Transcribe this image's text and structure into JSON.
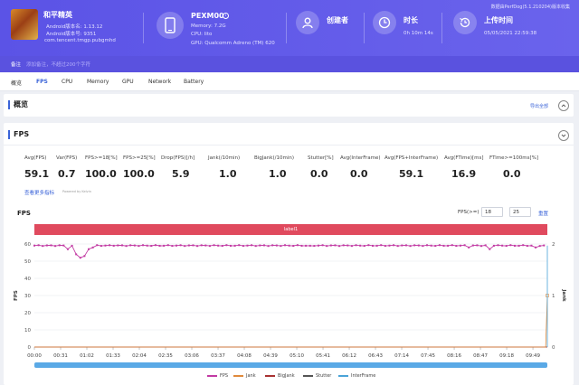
{
  "header": {
    "app": {
      "name": "和平精英",
      "android_version": "Android版本名: 1.13.12",
      "android_code": "Android版本号: 9351",
      "package": "com.tencent.tmgp.pubgmhd"
    },
    "device": {
      "name": "PEXM00",
      "memory": "Memory: 7.2G",
      "cpu": "CPU: lito",
      "gpu": "GPU: Qualcomm Adreno (TM) 620"
    },
    "creator": {
      "label": "创建者"
    },
    "duration": {
      "label": "时长",
      "value": "0h 10m 14s"
    },
    "upload": {
      "label": "上传时间",
      "value": "05/05/2021 22:59:38"
    },
    "version_note": "数据由PerfDog(5.1.210204)版本收集",
    "note": {
      "label": "备注",
      "placeholder": "添加备注，不超过200个字符"
    }
  },
  "tabs": [
    {
      "label": "概览",
      "active": false
    },
    {
      "label": "FPS",
      "active": true
    },
    {
      "label": "CPU",
      "active": false
    },
    {
      "label": "Memory",
      "active": false
    },
    {
      "label": "GPU",
      "active": false
    },
    {
      "label": "Network",
      "active": false
    },
    {
      "label": "Battery",
      "active": false
    }
  ],
  "overview": {
    "title": "概览",
    "export_label": "导出全部"
  },
  "fps_section": {
    "title": "FPS",
    "metrics": [
      {
        "label": "Avg(FPS)",
        "value": "59.1"
      },
      {
        "label": "Var(FPS)",
        "value": "0.7"
      },
      {
        "label": "FPS>=18[%]",
        "value": "100.0"
      },
      {
        "label": "FPS>=25[%]",
        "value": "100.0"
      },
      {
        "label": "Drop(FPS)[/h]",
        "value": "5.9"
      },
      {
        "label": "Jank(/10min)",
        "value": "1.0"
      },
      {
        "label": "BigJank(/10min)",
        "value": "1.0"
      },
      {
        "label": "Stutter[%]",
        "value": "0.0"
      },
      {
        "label": "Avg(InterFrame)",
        "value": "0.0"
      },
      {
        "label": "Avg(FPS+InterFrame)",
        "value": "59.1"
      },
      {
        "label": "Avg(FTime)[ms]",
        "value": "16.9"
      },
      {
        "label": "FTime>=100ms[%]",
        "value": "0.0"
      }
    ],
    "more_link": "查看更多指标",
    "more_hint": "Powered by Kelvin",
    "chart_title": "FPS",
    "filter_label": "FPS(>=)",
    "filter_values": [
      "18",
      "25"
    ],
    "reset_label": "重置",
    "label_bar": "label1"
  },
  "chart_data": {
    "type": "line",
    "title": "FPS",
    "xlabel": "",
    "ylabel": "FPS",
    "y2label": "Jank",
    "x_ticks": [
      "00:00",
      "00:31",
      "01:02",
      "01:33",
      "02:04",
      "02:35",
      "03:06",
      "03:37",
      "04:08",
      "04:39",
      "05:10",
      "05:41",
      "06:12",
      "06:43",
      "07:14",
      "07:45",
      "08:16",
      "08:47",
      "09:18",
      "09:49"
    ],
    "y_ticks": [
      0,
      10,
      20,
      30,
      40,
      50,
      60
    ],
    "y2_ticks": [
      0,
      1,
      2
    ],
    "ylim": [
      0,
      60
    ],
    "y2lim": [
      0,
      2
    ],
    "duration_s": 614,
    "grid": true,
    "legend_position": "bottom",
    "series": [
      {
        "name": "FPS",
        "color": "#c23aa3",
        "baseline": 59.1,
        "dips": [
          [
            38,
            57
          ],
          [
            45,
            59
          ],
          [
            52,
            54
          ],
          [
            55,
            52
          ],
          [
            58,
            53
          ],
          [
            63,
            57
          ],
          [
            70,
            58
          ],
          [
            95,
            59
          ],
          [
            330,
            59
          ],
          [
            520,
            58
          ],
          [
            545,
            57
          ],
          [
            548,
            59
          ],
          [
            600,
            58
          ]
        ]
      },
      {
        "name": "Jank",
        "color": "#e08a3c",
        "value": 0,
        "events": [
          [
            614,
            1
          ]
        ]
      },
      {
        "name": "BigJank",
        "color": "#a83232",
        "value": 0
      },
      {
        "name": "Stutter",
        "color": "#555555",
        "value": 0
      },
      {
        "name": "InterFrame",
        "color": "#4aa3d8",
        "value": 0
      }
    ],
    "colors": {
      "accent": "#3a63d8",
      "header": "#5b53e6",
      "label_bar": "#e04a5e"
    }
  }
}
